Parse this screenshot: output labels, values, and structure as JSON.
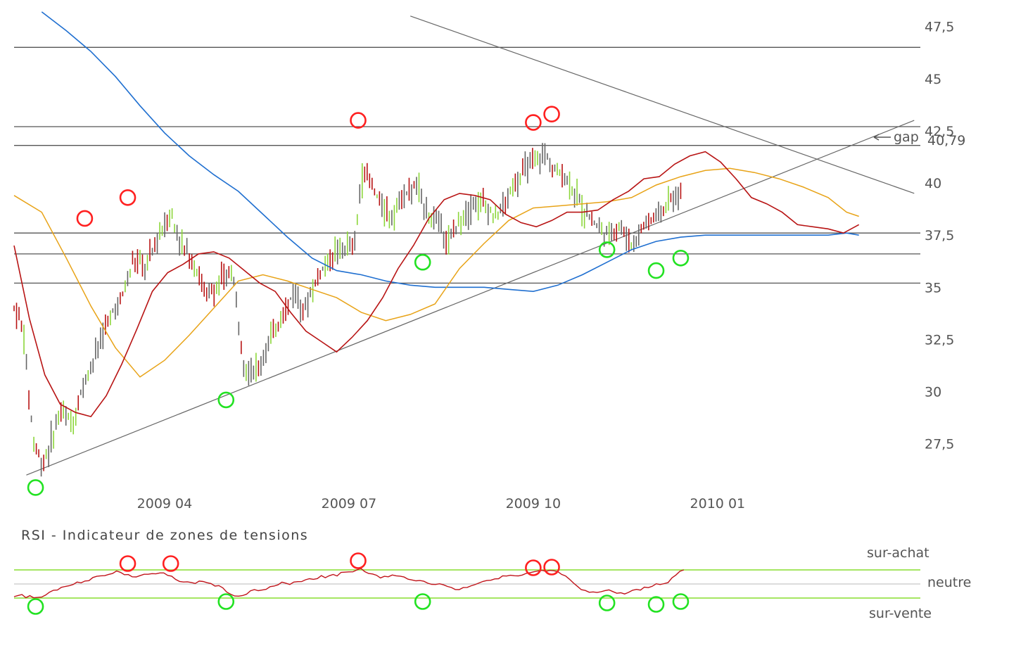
{
  "chart_data": {
    "type": "line",
    "price_panel": {
      "y_ticks": [
        "47,5",
        "45",
        "42,5",
        "40",
        "37,5",
        "35",
        "32,5",
        "30",
        "27,5"
      ],
      "ylim": [
        25.5,
        48.5
      ],
      "x_tick_labels": [
        {
          "label": "2009 04",
          "month": 3
        },
        {
          "label": "2009 07",
          "month": 6
        },
        {
          "label": "2009 10",
          "month": 9
        },
        {
          "label": "2010 01",
          "month": 12
        }
      ],
      "xlim_months": [
        0.55,
        15.3
      ],
      "horizontal_levels": [
        46.5,
        42.7,
        41.8,
        37.6,
        36.6,
        35.2
      ],
      "support_trendline": [
        {
          "month": 0.75,
          "price": 26.0
        },
        {
          "month": 15.2,
          "price": 43.0
        }
      ],
      "resistance_trendline": [
        {
          "month": 7.0,
          "price": 48.0
        },
        {
          "month": 15.2,
          "price": 39.5
        }
      ],
      "last_price_label": "40,79",
      "last_price": 40.79,
      "gap_label": "gap",
      "ma_short": [
        [
          0.55,
          37.0
        ],
        [
          0.8,
          33.5
        ],
        [
          1.05,
          30.8
        ],
        [
          1.3,
          29.4
        ],
        [
          1.55,
          29.0
        ],
        [
          1.8,
          28.8
        ],
        [
          2.05,
          29.8
        ],
        [
          2.3,
          31.3
        ],
        [
          2.55,
          33.0
        ],
        [
          2.8,
          34.8
        ],
        [
          3.05,
          35.7
        ],
        [
          3.3,
          36.1
        ],
        [
          3.55,
          36.6
        ],
        [
          3.8,
          36.7
        ],
        [
          4.05,
          36.4
        ],
        [
          4.3,
          35.8
        ],
        [
          4.55,
          35.2
        ],
        [
          4.8,
          34.8
        ],
        [
          5.05,
          33.8
        ],
        [
          5.3,
          32.9
        ],
        [
          5.55,
          32.4
        ],
        [
          5.8,
          31.9
        ],
        [
          6.05,
          32.6
        ],
        [
          6.3,
          33.4
        ],
        [
          6.55,
          34.5
        ],
        [
          6.8,
          35.9
        ],
        [
          7.05,
          37.0
        ],
        [
          7.3,
          38.3
        ],
        [
          7.55,
          39.2
        ],
        [
          7.8,
          39.5
        ],
        [
          8.05,
          39.4
        ],
        [
          8.3,
          39.2
        ],
        [
          8.55,
          38.5
        ],
        [
          8.8,
          38.1
        ],
        [
          9.05,
          37.9
        ],
        [
          9.3,
          38.2
        ],
        [
          9.55,
          38.6
        ],
        [
          9.8,
          38.6
        ],
        [
          10.05,
          38.7
        ],
        [
          10.3,
          39.2
        ],
        [
          10.55,
          39.6
        ],
        [
          10.8,
          40.2
        ],
        [
          11.05,
          40.3
        ],
        [
          11.3,
          40.9
        ],
        [
          11.55,
          41.3
        ],
        [
          11.8,
          41.5
        ],
        [
          12.05,
          41.0
        ],
        [
          12.3,
          40.2
        ],
        [
          12.55,
          39.3
        ],
        [
          12.8,
          39.0
        ],
        [
          13.05,
          38.6
        ],
        [
          13.3,
          38.0
        ],
        [
          13.55,
          37.9
        ],
        [
          13.8,
          37.8
        ],
        [
          14.05,
          37.6
        ],
        [
          14.3,
          38.0
        ]
      ],
      "ma_medium": [
        [
          0.55,
          39.4
        ],
        [
          1.0,
          38.6
        ],
        [
          1.4,
          36.4
        ],
        [
          1.8,
          34.1
        ],
        [
          2.2,
          32.1
        ],
        [
          2.6,
          30.7
        ],
        [
          3.0,
          31.5
        ],
        [
          3.4,
          32.7
        ],
        [
          3.8,
          34.0
        ],
        [
          4.2,
          35.3
        ],
        [
          4.6,
          35.6
        ],
        [
          5.0,
          35.3
        ],
        [
          5.4,
          34.9
        ],
        [
          5.8,
          34.5
        ],
        [
          6.2,
          33.8
        ],
        [
          6.6,
          33.4
        ],
        [
          7.0,
          33.7
        ],
        [
          7.4,
          34.2
        ],
        [
          7.8,
          35.9
        ],
        [
          8.2,
          37.1
        ],
        [
          8.6,
          38.2
        ],
        [
          9.0,
          38.8
        ],
        [
          9.4,
          38.9
        ],
        [
          9.8,
          39.0
        ],
        [
          10.2,
          39.1
        ],
        [
          10.6,
          39.3
        ],
        [
          11.0,
          39.9
        ],
        [
          11.4,
          40.3
        ],
        [
          11.8,
          40.6
        ],
        [
          12.2,
          40.7
        ],
        [
          12.6,
          40.5
        ],
        [
          13.0,
          40.2
        ],
        [
          13.4,
          39.8
        ],
        [
          13.8,
          39.3
        ],
        [
          14.1,
          38.6
        ],
        [
          14.3,
          38.4
        ]
      ],
      "ma_long": [
        [
          1.0,
          48.2
        ],
        [
          1.4,
          47.3
        ],
        [
          1.8,
          46.3
        ],
        [
          2.2,
          45.1
        ],
        [
          2.6,
          43.7
        ],
        [
          3.0,
          42.4
        ],
        [
          3.4,
          41.3
        ],
        [
          3.8,
          40.4
        ],
        [
          4.2,
          39.6
        ],
        [
          4.6,
          38.5
        ],
        [
          5.0,
          37.4
        ],
        [
          5.4,
          36.4
        ],
        [
          5.8,
          35.8
        ],
        [
          6.2,
          35.6
        ],
        [
          6.6,
          35.3
        ],
        [
          7.0,
          35.1
        ],
        [
          7.4,
          35.0
        ],
        [
          7.8,
          35.0
        ],
        [
          8.2,
          35.0
        ],
        [
          8.6,
          34.9
        ],
        [
          9.0,
          34.8
        ],
        [
          9.4,
          35.1
        ],
        [
          9.8,
          35.6
        ],
        [
          10.2,
          36.2
        ],
        [
          10.6,
          36.8
        ],
        [
          11.0,
          37.2
        ],
        [
          11.4,
          37.4
        ],
        [
          11.8,
          37.5
        ],
        [
          12.2,
          37.5
        ],
        [
          12.6,
          37.5
        ],
        [
          13.0,
          37.5
        ],
        [
          13.4,
          37.5
        ],
        [
          13.8,
          37.5
        ],
        [
          14.1,
          37.6
        ],
        [
          14.3,
          37.5
        ]
      ],
      "price_path": [
        [
          0.55,
          34.0
        ],
        [
          0.7,
          33.0
        ],
        [
          0.85,
          28.0
        ],
        [
          1.0,
          26.5
        ],
        [
          1.15,
          27.5
        ],
        [
          1.3,
          29.0
        ],
        [
          1.5,
          28.5
        ],
        [
          1.7,
          30.5
        ],
        [
          1.9,
          32.0
        ],
        [
          2.1,
          33.5
        ],
        [
          2.3,
          34.5
        ],
        [
          2.5,
          36.3
        ],
        [
          2.7,
          36.0
        ],
        [
          2.9,
          37.5
        ],
        [
          3.1,
          38.5
        ],
        [
          3.3,
          37.0
        ],
        [
          3.5,
          36.0
        ],
        [
          3.7,
          34.5
        ],
        [
          3.9,
          35.2
        ],
        [
          4.1,
          35.8
        ],
        [
          4.3,
          31.2
        ],
        [
          4.5,
          31.0
        ],
        [
          4.7,
          32.5
        ],
        [
          4.9,
          33.5
        ],
        [
          5.1,
          34.8
        ],
        [
          5.3,
          34.0
        ],
        [
          5.5,
          35.6
        ],
        [
          5.7,
          36.5
        ],
        [
          5.9,
          36.9
        ],
        [
          6.1,
          37.0
        ],
        [
          6.2,
          40.5
        ],
        [
          6.35,
          40.0
        ],
        [
          6.5,
          39.0
        ],
        [
          6.7,
          38.5
        ],
        [
          6.9,
          39.5
        ],
        [
          7.1,
          39.8
        ],
        [
          7.3,
          38.5
        ],
        [
          7.5,
          38.0
        ],
        [
          7.6,
          37.0
        ],
        [
          7.8,
          38.3
        ],
        [
          8.0,
          39.0
        ],
        [
          8.2,
          39.2
        ],
        [
          8.4,
          38.3
        ],
        [
          8.6,
          39.4
        ],
        [
          8.8,
          40.3
        ],
        [
          9.0,
          41.2
        ],
        [
          9.2,
          41.3
        ],
        [
          9.4,
          40.5
        ],
        [
          9.6,
          40.0
        ],
        [
          9.8,
          38.8
        ],
        [
          10.0,
          38.0
        ],
        [
          10.2,
          37.5
        ],
        [
          10.4,
          38.0
        ],
        [
          10.6,
          37.0
        ],
        [
          10.8,
          38.0
        ],
        [
          11.0,
          38.5
        ],
        [
          11.2,
          39.0
        ],
        [
          11.4,
          39.5
        ]
      ],
      "annotations": {
        "high_markers": [
          [
            1.7,
            38.3
          ],
          [
            2.4,
            39.3
          ],
          [
            6.15,
            43.0
          ],
          [
            9.0,
            42.9
          ],
          [
            9.3,
            43.3
          ]
        ],
        "low_markers": [
          [
            0.9,
            25.4
          ],
          [
            4.0,
            29.6
          ],
          [
            7.2,
            36.2
          ],
          [
            10.2,
            36.8
          ],
          [
            11.0,
            35.8
          ],
          [
            11.4,
            36.4
          ]
        ]
      }
    },
    "rsi_panel": {
      "title": "RSI   - Indicateur de zones de tensions",
      "zone_labels": {
        "overbought": "sur-achat",
        "neutral": "neutre",
        "oversold": "sur-vente"
      },
      "ylim": [
        10,
        90
      ],
      "levels": {
        "overbought": 70,
        "neutral": 50,
        "oversold": 30
      },
      "values": [
        32,
        33,
        34,
        32,
        33,
        31,
        30,
        33,
        34,
        38,
        41,
        43,
        46,
        46,
        48,
        50,
        51,
        53,
        55,
        56,
        58,
        60,
        61,
        63,
        64,
        66,
        68,
        66,
        64,
        62,
        61,
        60,
        62,
        63,
        64,
        63,
        64,
        65,
        64,
        62,
        60,
        58,
        55,
        53,
        52,
        51,
        52,
        53,
        54,
        52,
        50,
        48,
        46,
        43,
        40,
        36,
        34,
        33,
        35,
        37,
        39,
        41,
        42,
        43,
        44,
        45,
        47,
        49,
        51,
        50,
        49,
        51,
        53,
        55,
        56,
        58,
        57,
        59,
        61,
        60,
        62,
        64,
        63,
        65,
        66,
        67,
        68,
        70,
        73,
        69,
        66,
        63,
        61,
        59,
        60,
        61,
        62,
        61,
        60,
        59,
        58,
        57,
        56,
        54,
        53,
        52,
        51,
        50,
        49,
        48,
        47,
        45,
        43,
        42,
        44,
        46,
        48,
        50,
        52,
        54,
        55,
        57,
        58,
        59,
        60,
        61,
        62,
        61,
        60,
        62,
        64,
        65,
        66,
        67,
        68,
        67,
        69,
        68,
        66,
        64,
        60,
        55,
        50,
        45,
        42,
        40,
        38,
        37,
        38,
        40,
        42,
        41,
        39,
        37,
        36,
        37,
        38,
        40,
        42,
        43,
        44,
        45,
        47,
        49,
        50,
        51,
        53,
        58,
        63,
        68,
        70
      ],
      "annotations": {
        "high_markers": [
          [
            2.4,
            79
          ],
          [
            3.1,
            79
          ],
          [
            6.15,
            83
          ],
          [
            9.0,
            73
          ],
          [
            9.3,
            74
          ]
        ],
        "low_markers": [
          [
            0.9,
            18
          ],
          [
            4.0,
            25
          ],
          [
            7.2,
            25
          ],
          [
            10.2,
            23
          ],
          [
            11.0,
            21
          ],
          [
            11.4,
            25
          ]
        ]
      }
    },
    "colors": {
      "ma_short": "#b81414",
      "ma_medium": "#e8a317",
      "ma_long": "#1f6fd0",
      "candle_up": "#8cd63a",
      "candle_down": "#b81414",
      "candle_neutral": "#666666",
      "levels": "#555555",
      "rsi_line": "#c0141a",
      "rsi_bands": "#99e34d",
      "marker_high": "#ff2020",
      "marker_low": "#22e222"
    }
  }
}
